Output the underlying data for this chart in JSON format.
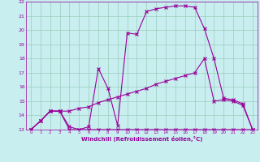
{
  "xlabel": "Windchill (Refroidissement éolien,°C)",
  "background_color": "#c8eef0",
  "line_color": "#990099",
  "grid_color": "#99ccbb",
  "xlim": [
    -0.5,
    23.5
  ],
  "ylim": [
    13,
    22
  ],
  "xticks": [
    0,
    1,
    2,
    3,
    4,
    5,
    6,
    7,
    8,
    9,
    10,
    11,
    12,
    13,
    14,
    15,
    16,
    17,
    18,
    19,
    20,
    21,
    22,
    23
  ],
  "yticks": [
    13,
    14,
    15,
    16,
    17,
    18,
    19,
    20,
    21,
    22
  ],
  "curve1_x": [
    0,
    1,
    2,
    3,
    4,
    5,
    6,
    7,
    8,
    9,
    10,
    11,
    12,
    13,
    14,
    15,
    16,
    17,
    18,
    19,
    20,
    21,
    22,
    23
  ],
  "curve1_y": [
    13.0,
    13.6,
    14.3,
    14.3,
    13.0,
    13.0,
    13.0,
    13.0,
    13.0,
    13.0,
    13.0,
    13.0,
    13.0,
    13.0,
    13.0,
    13.0,
    13.0,
    13.0,
    13.0,
    13.0,
    13.0,
    13.0,
    13.0,
    13.0
  ],
  "curve2_x": [
    0,
    1,
    2,
    3,
    4,
    5,
    6,
    7,
    8,
    9,
    10,
    11,
    12,
    13,
    14,
    15,
    16,
    17,
    18,
    19,
    20,
    21,
    22,
    23
  ],
  "curve2_y": [
    13.0,
    13.6,
    14.3,
    14.3,
    14.3,
    14.5,
    14.6,
    14.9,
    15.1,
    15.3,
    15.5,
    15.7,
    15.9,
    16.2,
    16.4,
    16.6,
    16.8,
    17.0,
    18.0,
    15.0,
    15.1,
    15.0,
    14.7,
    13.0
  ],
  "curve3_x": [
    0,
    1,
    2,
    3,
    4,
    5,
    6,
    7,
    8,
    9,
    10,
    11,
    12,
    13,
    14,
    15,
    16,
    17,
    18,
    19,
    20,
    21,
    22,
    23
  ],
  "curve3_y": [
    13.0,
    13.6,
    14.3,
    14.3,
    13.2,
    13.0,
    13.2,
    17.3,
    15.9,
    13.3,
    19.8,
    19.7,
    21.3,
    21.5,
    21.6,
    21.7,
    21.7,
    21.6,
    20.1,
    18.0,
    15.2,
    15.1,
    14.8,
    13.0
  ]
}
